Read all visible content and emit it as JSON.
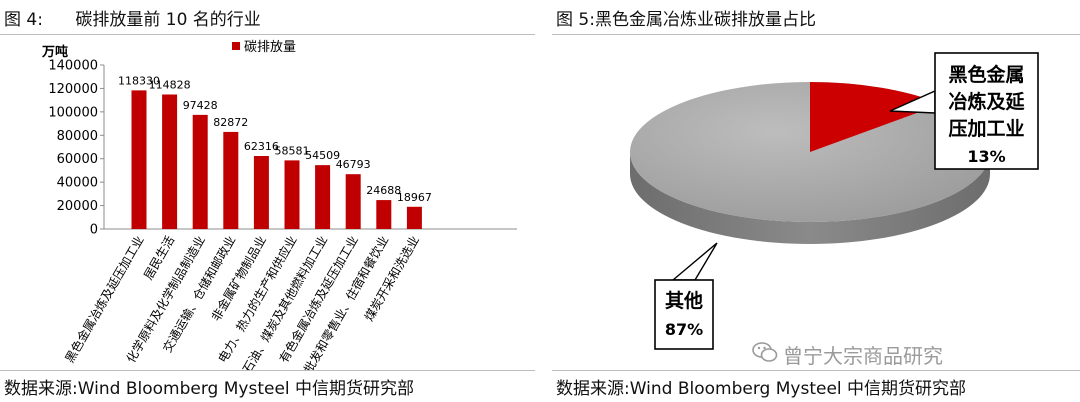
{
  "fig4": {
    "title": "图 4:      碳排放量前 10 名的行业",
    "source": "数据来源:Wind Bloomberg Mysteel 中信期货研究部",
    "chart_data": {
      "type": "bar",
      "ylabel": "万吨",
      "legend": "碳排放量",
      "legend_position": "top-center",
      "ylim": [
        0,
        140000
      ],
      "yticks": [
        "0",
        "20000",
        "40000",
        "60000",
        "80000",
        "100000",
        "120000",
        "140000"
      ],
      "color": "#c00000",
      "categories": [
        "黑色金属冶炼及延压加工业",
        "居民生活",
        "化学原料及化学制品制造业",
        "交通运输、仓储和邮政业",
        "非金属矿物制品业",
        "电力、热力的生产和供应业",
        "石油、煤炭及其他燃料加工业",
        "有色金属冶炼及延压加工业",
        "批发和零售业、住宿和餐饮业",
        "煤炭开采和洗选业"
      ],
      "values": [
        118330,
        114828,
        97428,
        82872,
        62316,
        58581,
        54509,
        46793,
        24688,
        18967
      ],
      "value_labels": [
        "118330",
        "114828",
        "97428",
        "82872",
        "62316",
        "58581",
        "54509",
        "46793",
        "24688",
        "18967"
      ]
    }
  },
  "fig5": {
    "title": "图 5:黑色金属冶炼业碳排放量占比",
    "source": "数据来源:Wind Bloomberg Mysteel 中信期货研究部",
    "chart_data": {
      "type": "pie",
      "slices": [
        {
          "label_lines": [
            "黑色金属",
            "冶炼及延",
            "压加工业"
          ],
          "percent_label": "13%",
          "value": 13,
          "color": "#cc0000"
        },
        {
          "label_lines": [
            "其他"
          ],
          "percent_label": "87%",
          "value": 87,
          "color": "#a6a6a6"
        }
      ]
    }
  },
  "watermark": "曾宁大宗商品研究"
}
